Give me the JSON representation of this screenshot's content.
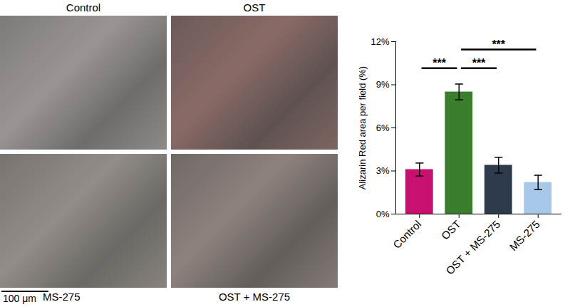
{
  "panels": {
    "labels": [
      "Control",
      "OST",
      "MS-275",
      "OST + MS-275"
    ],
    "scale_bar": "100 μm"
  },
  "chart_data": {
    "type": "bar",
    "categories": [
      "Control",
      "OST",
      "OST + MS-275",
      "MS-275"
    ],
    "values": [
      3.1,
      8.5,
      3.4,
      2.2
    ],
    "errors": [
      0.45,
      0.55,
      0.55,
      0.5
    ],
    "colors": [
      "#c8106e",
      "#3a7d2c",
      "#2e3b4c",
      "#a8c8ea"
    ],
    "y_label": "Alizarin Red area per field (%)",
    "ylim": [
      0,
      12
    ],
    "yticks": [
      {
        "value": 0,
        "label": "0%"
      },
      {
        "value": 3,
        "label": "3%"
      },
      {
        "value": 6,
        "label": "6%"
      },
      {
        "value": 9,
        "label": "9%"
      },
      {
        "value": 12,
        "label": "12%"
      }
    ],
    "annotations": [
      {
        "from": "Control",
        "to": "OST",
        "text": "***"
      },
      {
        "from": "OST",
        "to": "OST + MS-275",
        "text": "***"
      },
      {
        "from": "OST",
        "to": "MS-275",
        "text": "***"
      }
    ],
    "grid": false
  }
}
